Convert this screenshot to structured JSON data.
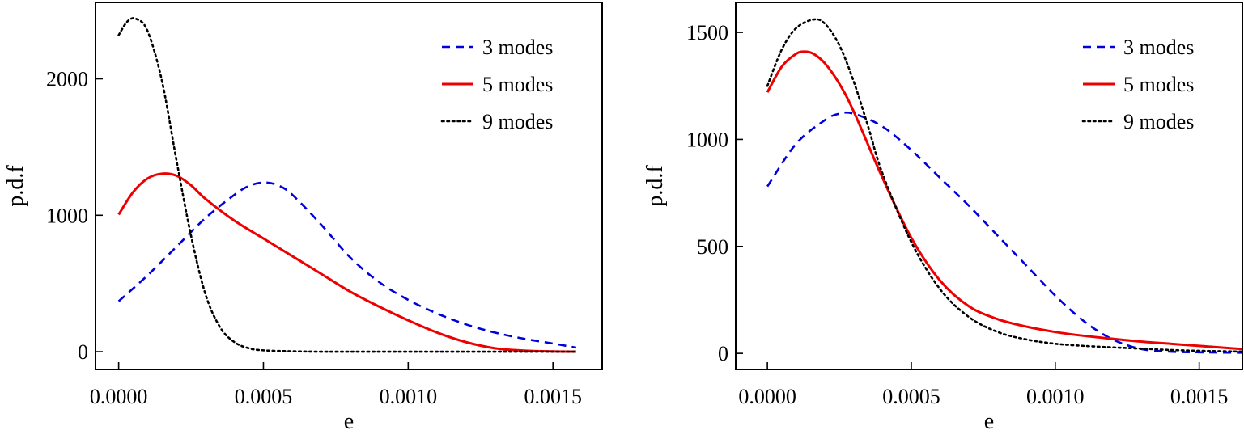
{
  "chart_data": [
    {
      "type": "line",
      "xlabel": "e",
      "ylabel": "p.d.f",
      "xlim": [
        -8e-05,
        0.00167
      ],
      "ylim": [
        -130,
        2560
      ],
      "xticks": [
        0.0,
        0.0005,
        0.001,
        0.0015
      ],
      "xtick_labels": [
        "0.0000",
        "0.0005",
        "0.0010",
        "0.0015"
      ],
      "yticks": [
        0,
        1000,
        2000
      ],
      "ytick_labels": [
        "0",
        "1000",
        "2000"
      ],
      "legend_position": "top-right",
      "series": [
        {
          "name": "3 modes",
          "style": "dashed",
          "color": "#0000dd",
          "x": [
            0.0,
            0.0001,
            0.0002,
            0.0003,
            0.0004,
            0.00045,
            0.0005,
            0.00055,
            0.0006,
            0.0007,
            0.0008,
            0.0009,
            0.001,
            0.0011,
            0.0012,
            0.0013,
            0.0014,
            0.0015,
            0.00158
          ],
          "y": [
            370,
            560,
            770,
            980,
            1150,
            1215,
            1240,
            1220,
            1150,
            930,
            690,
            510,
            380,
            280,
            200,
            140,
            95,
            60,
            30
          ]
        },
        {
          "name": "5 modes",
          "style": "solid",
          "color": "#ee0000",
          "x": [
            0.0,
            5e-05,
            0.0001,
            0.00015,
            0.0002,
            0.00025,
            0.0003,
            0.0004,
            0.0005,
            0.0006,
            0.0007,
            0.0008,
            0.0009,
            0.001,
            0.0011,
            0.0012,
            0.0013,
            0.0014,
            0.0015,
            0.00158
          ],
          "y": [
            1005,
            1170,
            1270,
            1305,
            1290,
            1220,
            1120,
            960,
            830,
            700,
            570,
            440,
            330,
            230,
            140,
            70,
            25,
            8,
            2,
            0
          ]
        },
        {
          "name": "9 modes",
          "style": "dotted",
          "color": "#000000",
          "x": [
            0.0,
            3e-05,
            6e-05,
            0.0001,
            0.00015,
            0.0002,
            0.00025,
            0.0003,
            0.00035,
            0.0004,
            0.00045,
            0.0005,
            0.0006,
            0.0007,
            0.0008,
            0.001,
            0.0012,
            0.0015,
            0.00158
          ],
          "y": [
            2320,
            2420,
            2440,
            2350,
            1980,
            1400,
            850,
            420,
            180,
            70,
            25,
            10,
            3,
            0,
            0,
            0,
            0,
            0,
            0
          ]
        }
      ]
    },
    {
      "type": "line",
      "xlabel": "e",
      "ylabel": "p.d.f",
      "xlim": [
        -0.00011,
        0.00165
      ],
      "ylim": [
        -75,
        1640
      ],
      "xticks": [
        0.0,
        0.0005,
        0.001,
        0.0015
      ],
      "xtick_labels": [
        "0.0000",
        "0.0005",
        "0.0010",
        "0.0015"
      ],
      "yticks": [
        0,
        500,
        1000,
        1500
      ],
      "ytick_labels": [
        "0",
        "500",
        "1000",
        "1500"
      ],
      "legend_position": "top-right",
      "series": [
        {
          "name": "3 modes",
          "style": "dashed",
          "color": "#0000dd",
          "x": [
            0.0,
            0.0001,
            0.0002,
            0.00025,
            0.0003,
            0.0004,
            0.0005,
            0.0006,
            0.0007,
            0.0008,
            0.0009,
            0.001,
            0.0011,
            0.0012,
            0.0013,
            0.0014,
            0.0015,
            0.00165
          ],
          "y": [
            780,
            980,
            1090,
            1120,
            1120,
            1060,
            950,
            820,
            690,
            550,
            410,
            270,
            150,
            65,
            20,
            8,
            5,
            3
          ]
        },
        {
          "name": "5 modes",
          "style": "solid",
          "color": "#ee0000",
          "x": [
            0.0,
            5e-05,
            0.0001,
            0.00013,
            0.00016,
            0.0002,
            0.00025,
            0.0003,
            0.0004,
            0.0005,
            0.0006,
            0.0007,
            0.0008,
            0.0009,
            0.001,
            0.0011,
            0.0012,
            0.0013,
            0.0014,
            0.0015,
            0.00165
          ],
          "y": [
            1220,
            1340,
            1400,
            1410,
            1400,
            1355,
            1260,
            1130,
            820,
            540,
            340,
            220,
            160,
            125,
            100,
            82,
            68,
            55,
            45,
            35,
            20
          ]
        },
        {
          "name": "9 modes",
          "style": "dotted",
          "color": "#000000",
          "x": [
            0.0,
            5e-05,
            0.0001,
            0.00016,
            0.0002,
            0.00025,
            0.0003,
            0.00035,
            0.0004,
            0.0005,
            0.0006,
            0.0007,
            0.0008,
            0.0009,
            0.001,
            0.0011,
            0.0012,
            0.0013,
            0.0014,
            0.0015,
            0.00165
          ],
          "y": [
            1250,
            1420,
            1520,
            1560,
            1540,
            1440,
            1270,
            1060,
            840,
            520,
            300,
            170,
            100,
            65,
            45,
            35,
            28,
            22,
            16,
            12,
            8
          ]
        }
      ]
    }
  ]
}
